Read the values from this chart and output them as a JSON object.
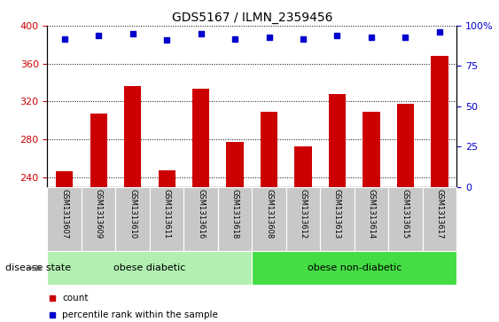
{
  "title": "GDS5167 / ILMN_2359456",
  "samples": [
    "GSM1313607",
    "GSM1313609",
    "GSM1313610",
    "GSM1313611",
    "GSM1313616",
    "GSM1313618",
    "GSM1313608",
    "GSM1313612",
    "GSM1313613",
    "GSM1313614",
    "GSM1313615",
    "GSM1313617"
  ],
  "counts": [
    246,
    307,
    336,
    247,
    334,
    277,
    309,
    273,
    328,
    309,
    318,
    368
  ],
  "percentile_ranks": [
    92,
    94,
    95,
    91,
    95,
    92,
    93,
    92,
    94,
    93,
    93,
    96
  ],
  "ylim_left": [
    230,
    400
  ],
  "ylim_right": [
    0,
    100
  ],
  "yticks_left": [
    240,
    280,
    320,
    360,
    400
  ],
  "yticks_right": [
    0,
    25,
    50,
    75,
    100
  ],
  "groups": [
    {
      "label": "obese diabetic",
      "start": 0,
      "end": 6,
      "color": "#b2f0b2"
    },
    {
      "label": "obese non-diabetic",
      "start": 6,
      "end": 12,
      "color": "#44dd44"
    }
  ],
  "bar_color": "#CC0000",
  "dot_color": "#0000CC",
  "bg_color": "#C8C8C8",
  "disease_state_label": "disease state",
  "title_fontsize": 10,
  "tick_fontsize": 8,
  "sample_fontsize": 6,
  "legend_fontsize": 7.5
}
